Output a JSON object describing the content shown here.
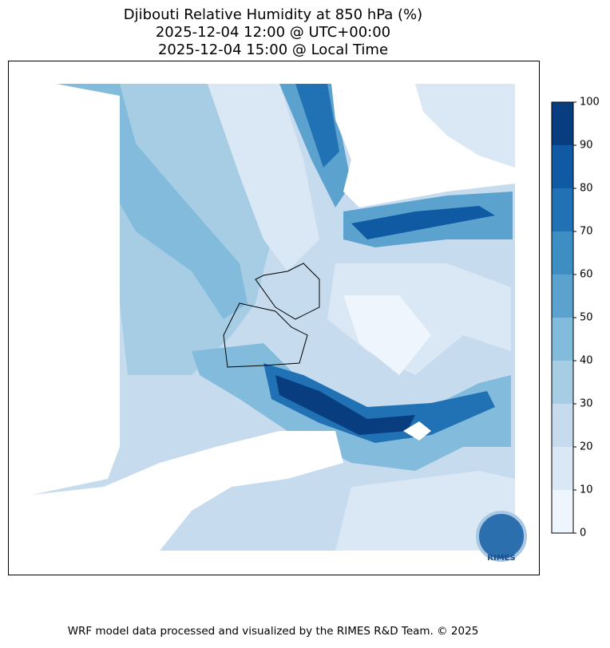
{
  "title": [
    "Djibouti Relative Humidity at 850 hPa (%)",
    "2025-12-04 12:00 @ UTC+00:00",
    "2025-12-04 15:00 @ Local Time"
  ],
  "colorbar": {
    "ticks": [
      0,
      10,
      20,
      30,
      40,
      50,
      60,
      70,
      80,
      90,
      100
    ],
    "colors": [
      "#eff5fc",
      "#dae8f5",
      "#c7dbef",
      "#a6cde3",
      "#82bbdb",
      "#5ba2cf",
      "#3d8ec3",
      "#2171b5",
      "#0f5aa3",
      "#083e80"
    ]
  },
  "logo": "RIMES",
  "footer": "WRF model data processed and visualized by the RIMES R&D Team. © 2025"
}
